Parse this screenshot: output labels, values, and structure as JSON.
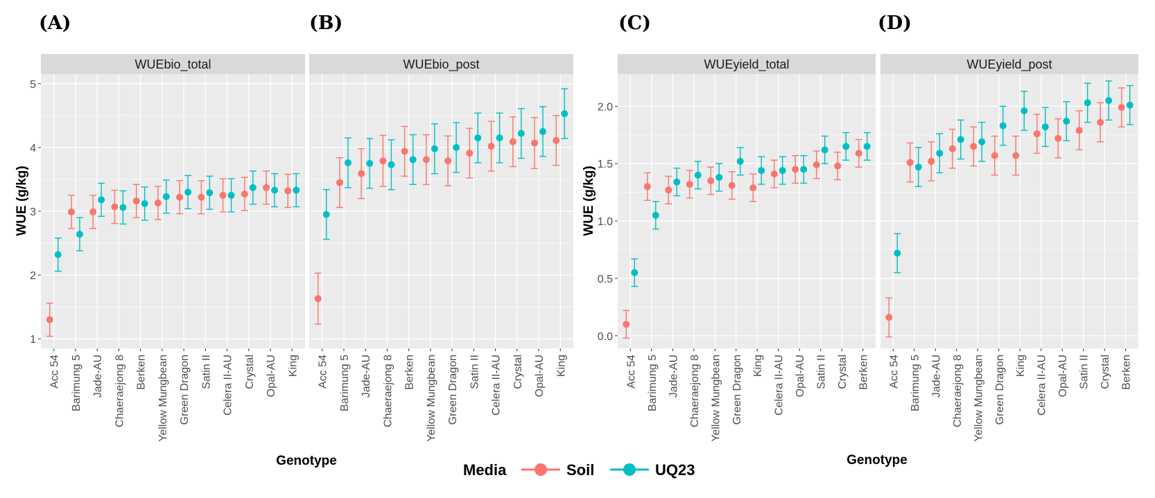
{
  "panel_labels": [
    "(A)",
    "(B)",
    "(C)",
    "(D)"
  ],
  "axis_titles": {
    "left_y": "WUE (g/kg)",
    "left_x": "Genotype",
    "right_y": "WUE (g/kg)",
    "right_x": "Genotype"
  },
  "legend": {
    "title": "Media",
    "items": [
      {
        "label": "Soil",
        "color": "#F8766D"
      },
      {
        "label": "UQ23",
        "color": "#00BFC4"
      }
    ]
  },
  "colors": {
    "panel_bg": "#EBEBEB",
    "strip_bg": "#D9D9D9",
    "grid": "#FFFFFF",
    "soil": "#F8766D",
    "uq23": "#00BFC4"
  },
  "chart_data": [
    {
      "type": "scatter",
      "facet": "WUEbio_total",
      "ylabel": "WUE (g/kg)",
      "xlabel": "Genotype",
      "ylim": [
        0.85,
        5.15
      ],
      "yticks": [
        1,
        2,
        3,
        4,
        5
      ],
      "ytick_labels": [
        "1",
        "2",
        "3",
        "4",
        "5"
      ],
      "categories": [
        "Acc 54",
        "Barimung 5",
        "Jade-AU",
        "Chaeraejong 8",
        "Berken",
        "Yellow Mungbean",
        "Green Dragon",
        "Satin II",
        "Celera II-AU",
        "Crystal",
        "Opal-AU",
        "King"
      ],
      "series": [
        {
          "name": "Soil",
          "values": [
            1.3,
            2.99,
            2.99,
            3.07,
            3.16,
            3.13,
            3.22,
            3.22,
            3.25,
            3.27,
            3.37,
            3.32
          ],
          "error": [
            0.26,
            0.26,
            0.26,
            0.26,
            0.26,
            0.26,
            0.26,
            0.26,
            0.26,
            0.26,
            0.26,
            0.26
          ]
        },
        {
          "name": "UQ23",
          "values": [
            2.32,
            2.64,
            3.18,
            3.06,
            3.12,
            3.23,
            3.3,
            3.29,
            3.25,
            3.37,
            3.33,
            3.33
          ],
          "error": [
            0.26,
            0.26,
            0.26,
            0.26,
            0.26,
            0.26,
            0.26,
            0.26,
            0.26,
            0.26,
            0.26,
            0.26
          ]
        }
      ]
    },
    {
      "type": "scatter",
      "facet": "WUEbio_post",
      "ylim": [
        0.85,
        5.15
      ],
      "categories": [
        "Acc 54",
        "Barimung 5",
        "Jade-AU",
        "Chaeraejong 8",
        "Berken",
        "Yellow Mungbean",
        "Green Dragon",
        "Satin II",
        "Celera II-AU",
        "Crystal",
        "Opal-AU",
        "King"
      ],
      "series": [
        {
          "name": "Soil",
          "values": [
            1.63,
            3.45,
            3.59,
            3.79,
            3.94,
            3.81,
            3.79,
            3.91,
            4.02,
            4.09,
            4.07,
            4.11
          ],
          "error": [
            0.4,
            0.39,
            0.39,
            0.4,
            0.39,
            0.39,
            0.39,
            0.39,
            0.39,
            0.39,
            0.4,
            0.39
          ]
        },
        {
          "name": "UQ23",
          "values": [
            2.95,
            3.76,
            3.75,
            3.73,
            3.81,
            3.98,
            4.0,
            4.15,
            4.15,
            4.22,
            4.25,
            4.53
          ],
          "error": [
            0.39,
            0.39,
            0.39,
            0.39,
            0.39,
            0.39,
            0.39,
            0.39,
            0.39,
            0.39,
            0.39,
            0.39
          ]
        }
      ]
    },
    {
      "type": "scatter",
      "facet": "WUEyield_total",
      "ylabel": "WUE (g/kg)",
      "xlabel": "Genotype",
      "ylim": [
        -0.11,
        2.28
      ],
      "yticks": [
        0.0,
        0.5,
        1.0,
        1.5,
        2.0
      ],
      "ytick_labels": [
        "0.0",
        "0.5",
        "1.0",
        "1.5",
        "2.0"
      ],
      "categories": [
        "Acc 54",
        "Barimung 5",
        "Jade-AU",
        "Chaeraejong 8",
        "Yellow Mungbean",
        "Green Dragon",
        "King",
        "Celera II-AU",
        "Opal-AU",
        "Satin II",
        "Crystal",
        "Berken"
      ],
      "series": [
        {
          "name": "Soil",
          "values": [
            0.1,
            1.3,
            1.27,
            1.32,
            1.35,
            1.31,
            1.29,
            1.41,
            1.45,
            1.49,
            1.48,
            1.59
          ],
          "error": [
            0.12,
            0.12,
            0.12,
            0.12,
            0.12,
            0.12,
            0.12,
            0.12,
            0.12,
            0.12,
            0.12,
            0.12
          ]
        },
        {
          "name": "UQ23",
          "values": [
            0.55,
            1.05,
            1.34,
            1.4,
            1.38,
            1.52,
            1.44,
            1.44,
            1.45,
            1.62,
            1.65,
            1.65
          ],
          "error": [
            0.12,
            0.12,
            0.12,
            0.12,
            0.12,
            0.12,
            0.12,
            0.12,
            0.12,
            0.12,
            0.12,
            0.12
          ]
        }
      ]
    },
    {
      "type": "scatter",
      "facet": "WUEyield_post",
      "ylim": [
        -0.11,
        2.28
      ],
      "categories": [
        "Acc 54",
        "Barimung 5",
        "Jade-AU",
        "Chaeraejong 8",
        "Yellow Mungbean",
        "Green Dragon",
        "King",
        "Celera II-AU",
        "Opal-AU",
        "Satin II",
        "Crystal",
        "Berken"
      ],
      "series": [
        {
          "name": "Soil",
          "values": [
            0.16,
            1.51,
            1.52,
            1.63,
            1.65,
            1.57,
            1.57,
            1.76,
            1.72,
            1.79,
            1.86,
            1.99
          ],
          "error": [
            0.17,
            0.17,
            0.17,
            0.17,
            0.17,
            0.17,
            0.17,
            0.17,
            0.17,
            0.17,
            0.17,
            0.17
          ]
        },
        {
          "name": "UQ23",
          "values": [
            0.72,
            1.47,
            1.59,
            1.71,
            1.69,
            1.83,
            1.96,
            1.82,
            1.87,
            2.03,
            2.05,
            2.01
          ],
          "error": [
            0.17,
            0.17,
            0.17,
            0.17,
            0.17,
            0.17,
            0.17,
            0.17,
            0.17,
            0.17,
            0.17,
            0.17
          ]
        }
      ]
    }
  ]
}
